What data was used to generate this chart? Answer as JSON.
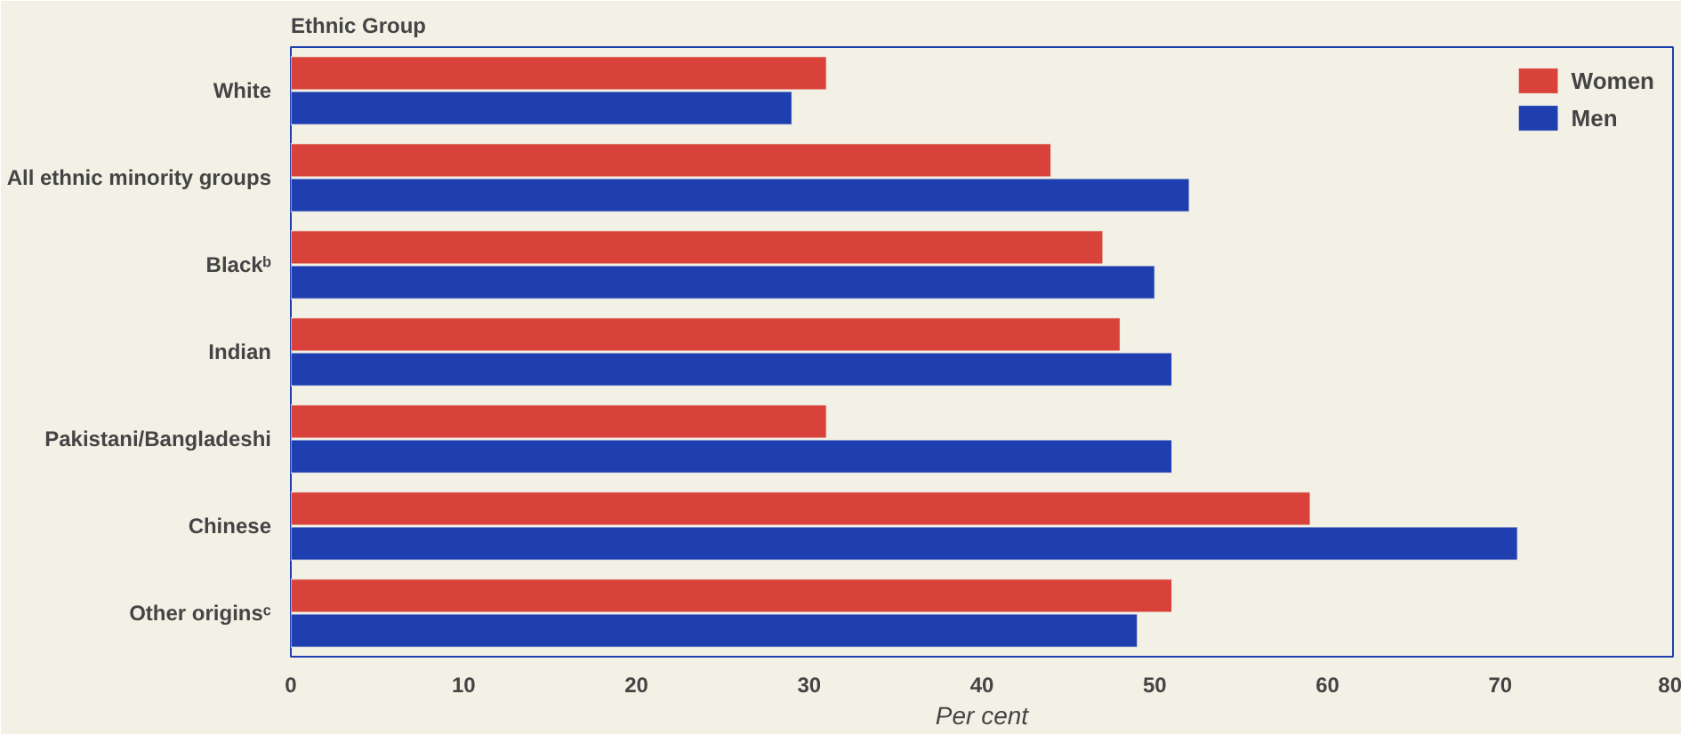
{
  "chart_data": {
    "type": "bar",
    "orientation": "horizontal",
    "ylabel": "Ethnic Group",
    "xlabel": "Per cent",
    "categories": [
      "White",
      "All ethnic minority groups",
      "Blackᵇ",
      "Indian",
      "Pakistani/Bangladeshi",
      "Chinese",
      "Other originsᶜ"
    ],
    "series": [
      {
        "name": "Women",
        "color": "#d8423a",
        "values": [
          31,
          44,
          47,
          48,
          31,
          59,
          51
        ]
      },
      {
        "name": "Men",
        "color": "#1f3fb0",
        "values": [
          29,
          52,
          50,
          51,
          51,
          71,
          49
        ]
      }
    ],
    "xlim": [
      0,
      80
    ],
    "xticks": [
      0,
      10,
      20,
      30,
      40,
      50,
      60,
      70,
      80
    ],
    "grid": false,
    "legend": "top right"
  }
}
